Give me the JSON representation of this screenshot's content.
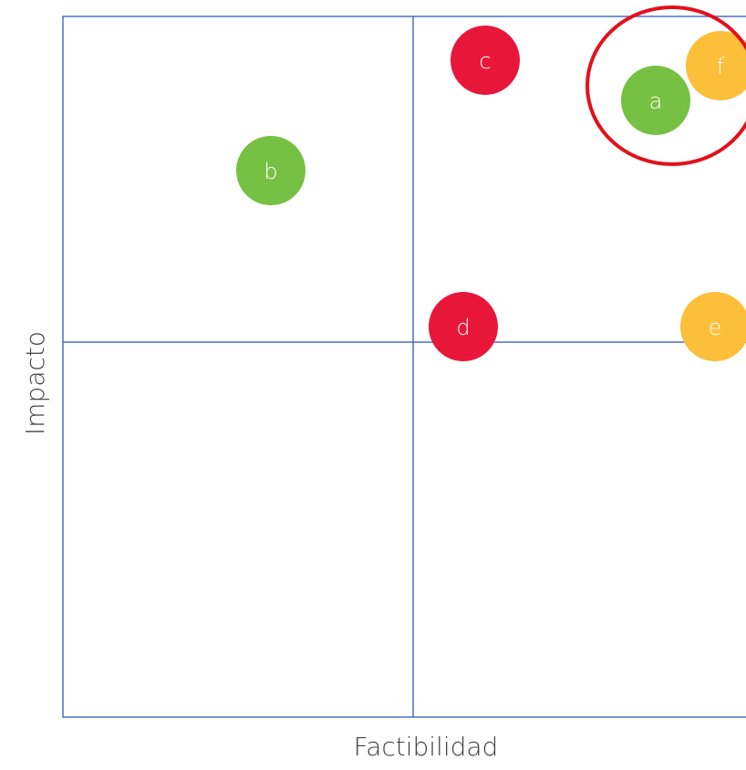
{
  "x_axis_label": "Factibilidad",
  "y_axis_label": "Impacto",
  "nodes": [
    {
      "label": "c",
      "color": "#e8173a"
    },
    {
      "label": "f",
      "color": "#fbbf3a"
    },
    {
      "label": "a",
      "color": "#76c043"
    },
    {
      "label": "b",
      "color": "#76c043"
    },
    {
      "label": "d",
      "color": "#e8173a"
    },
    {
      "label": "e",
      "color": "#fbbf3a"
    }
  ]
}
